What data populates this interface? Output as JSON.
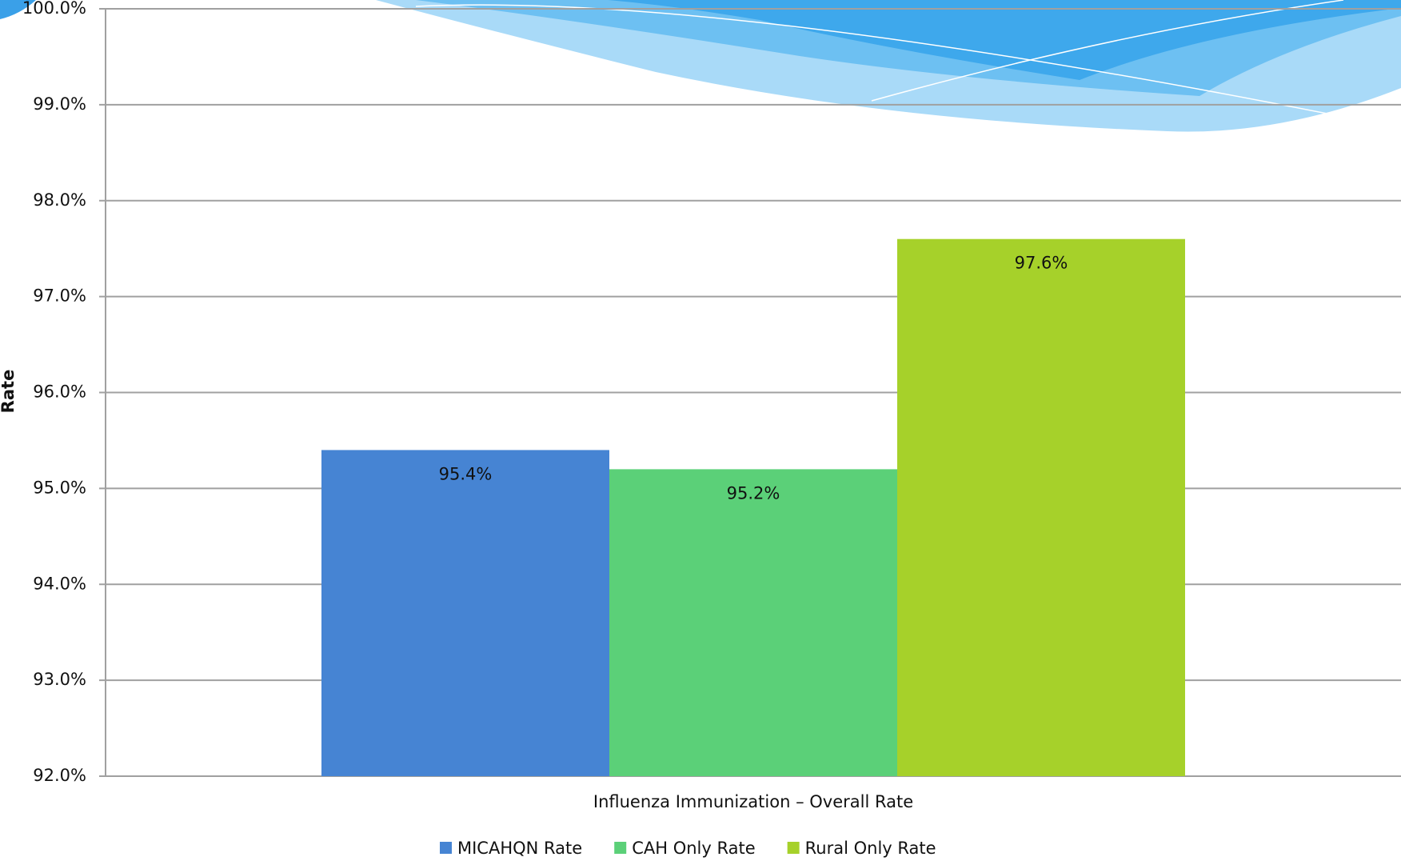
{
  "chart_data": {
    "type": "bar",
    "y_label": "Rate",
    "categories": [
      "Influenza Immunization – Overall Rate"
    ],
    "series": [
      {
        "name": "MICAHQN Rate",
        "color": "#4684d3",
        "values": [
          95.4
        ],
        "value_labels": [
          "95.4%"
        ]
      },
      {
        "name": "CAH Only Rate",
        "color": "#5bd078",
        "values": [
          95.2
        ],
        "value_labels": [
          "95.2%"
        ]
      },
      {
        "name": "Rural Only Rate",
        "color": "#a6d12a",
        "values": [
          97.6
        ],
        "value_labels": [
          "97.6%"
        ]
      }
    ],
    "ylim": [
      92,
      100
    ],
    "yticks": [
      {
        "value": 92,
        "label": "92.0%"
      },
      {
        "value": 93,
        "label": "93.0%"
      },
      {
        "value": 94,
        "label": "94.0%"
      },
      {
        "value": 95,
        "label": "95.0%"
      },
      {
        "value": 96,
        "label": "96.0%"
      },
      {
        "value": 97,
        "label": "97.0%"
      },
      {
        "value": 98,
        "label": "98.0%"
      },
      {
        "value": 99,
        "label": "99.0%"
      },
      {
        "value": 100,
        "label": "100.0%"
      }
    ],
    "grid": true
  }
}
